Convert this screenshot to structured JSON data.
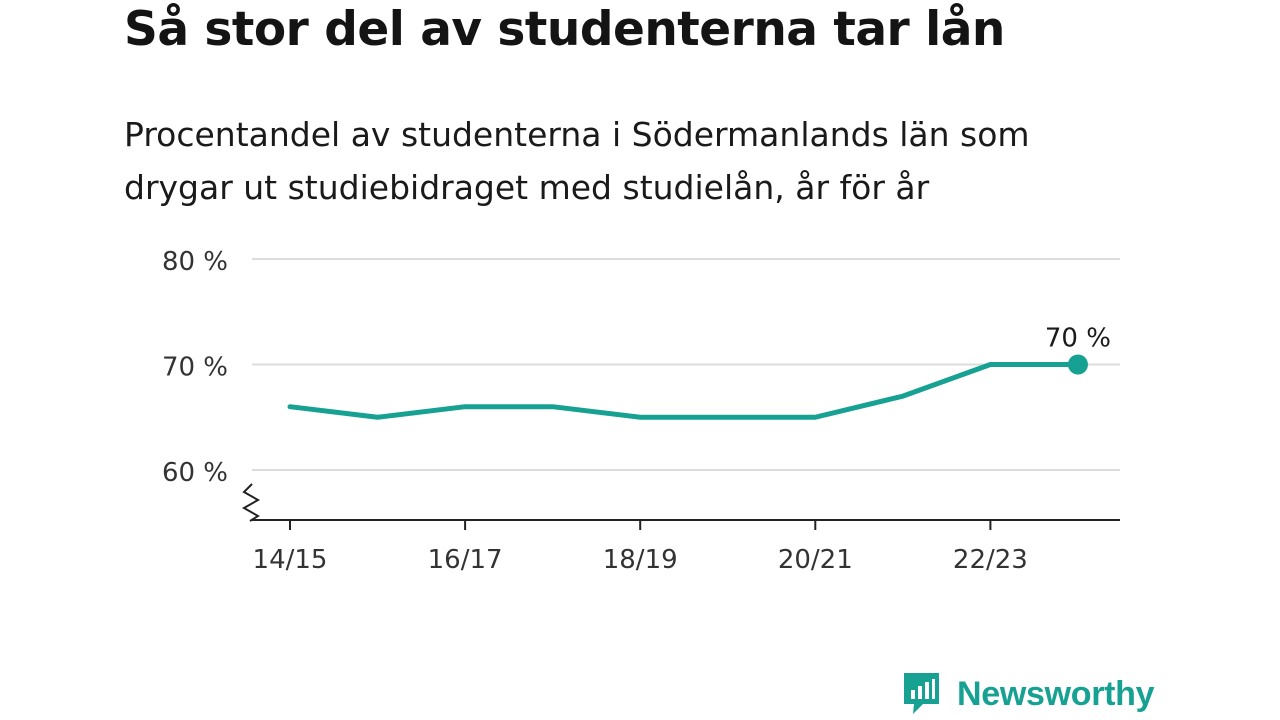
{
  "title": "Så stor del av studenterna tar lån",
  "subtitle_lines": [
    "Procentandel av studenterna i Södermanlands län som",
    "drygar ut studiebidraget med studielån, år för år"
  ],
  "brand": {
    "name": "Newsworthy",
    "color": "#17a193",
    "icon": "newsworthy-chart-bubble-icon"
  },
  "chart_data": {
    "type": "line",
    "x": [
      "14/15",
      "15/16",
      "16/17",
      "17/18",
      "18/19",
      "19/20",
      "20/21",
      "21/22",
      "22/23",
      "23/24"
    ],
    "series": [
      {
        "values": [
          66,
          65,
          66,
          66,
          65,
          65,
          65,
          67,
          70,
          70
        ],
        "color": "#17a193"
      }
    ],
    "xtick_labels": [
      "14/15",
      "16/17",
      "18/19",
      "20/21",
      "22/23"
    ],
    "ytick_labels": [
      "60 %",
      "70 %",
      "80 %"
    ],
    "yticks": [
      60,
      70,
      80
    ],
    "ylim": [
      60,
      80
    ],
    "axis_break": true,
    "grid": true,
    "end_label": "70 %",
    "xlabel": "",
    "ylabel": ""
  }
}
